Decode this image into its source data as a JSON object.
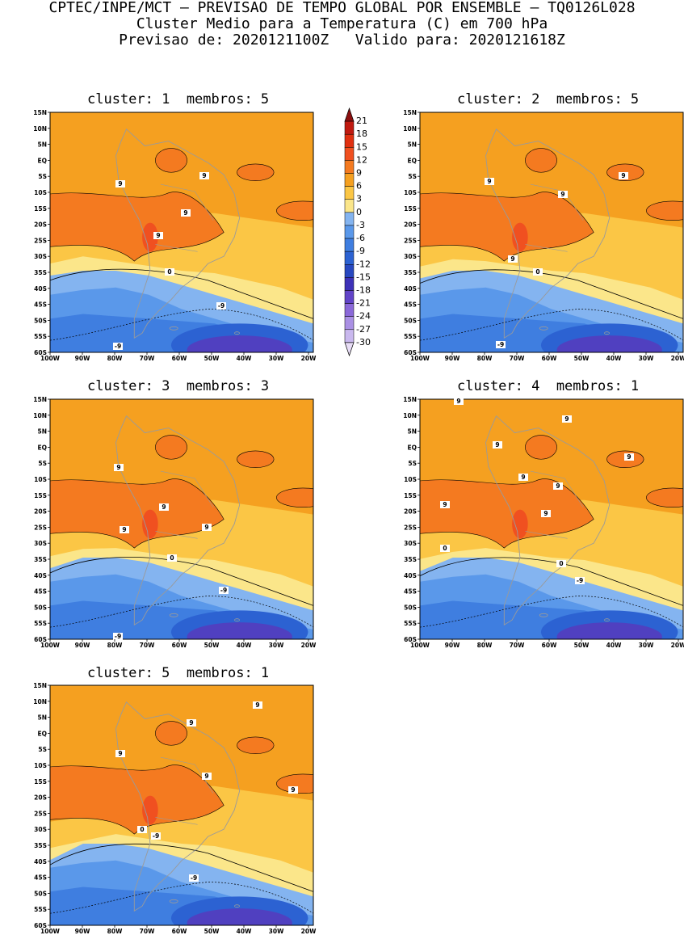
{
  "header": {
    "line1": "CPTEC/INPE/MCT – PREVISAO DE TEMPO GLOBAL POR ENSEMBLE – TQ0126L028",
    "line2": "Cluster Medio para a Temperatura (C) em 700 hPa",
    "line3": "Previsao de: 2020121100Z   Valido para: 2020121618Z"
  },
  "panels": [
    {
      "title": "cluster: 1  membros: 5",
      "labels": [
        "9",
        "9",
        "9",
        "9",
        "0",
        "-9",
        "-9"
      ]
    },
    {
      "title": "cluster: 2  membros: 5",
      "labels": [
        "9",
        "9",
        "9",
        "9",
        "0",
        "-9"
      ]
    },
    {
      "title": "cluster: 3  membros: 3",
      "labels": [
        "9",
        "9",
        "9",
        "9",
        "0",
        "-9",
        "-9"
      ]
    },
    {
      "title": "cluster: 4  membros: 1",
      "labels": [
        "9",
        "9",
        "9",
        "9",
        "9",
        "9",
        "9",
        "9",
        "0",
        "0",
        "-9"
      ]
    },
    {
      "title": "cluster: 5  membros: 1",
      "labels": [
        "9",
        "9",
        "9",
        "9",
        "9",
        "0",
        "-9",
        "-9"
      ]
    }
  ],
  "axes": {
    "lat_labels": [
      "15N",
      "10N",
      "5N",
      "EQ",
      "5S",
      "10S",
      "15S",
      "20S",
      "25S",
      "30S",
      "35S",
      "40S",
      "45S",
      "50S",
      "55S",
      "60S"
    ],
    "lon_labels": [
      "100W",
      "90W",
      "80W",
      "70W",
      "60W",
      "50W",
      "40W",
      "30W",
      "20W"
    ]
  },
  "colorbar": {
    "labels": [
      "21",
      "18",
      "15",
      "12",
      "9",
      "6",
      "3",
      "0",
      "-3",
      "-6",
      "-9",
      "-12",
      "-15",
      "-18",
      "-21",
      "-24",
      "-27",
      "-30"
    ],
    "colors": [
      "#8c1010",
      "#c01a10",
      "#e03010",
      "#f05020",
      "#f47a20",
      "#f5a020",
      "#fbc645",
      "#fbe68a",
      "#84b4f0",
      "#5a98ea",
      "#3f7ee0",
      "#2c62d2",
      "#2848c0",
      "#3e32b8",
      "#6244c8",
      "#8a68d8",
      "#aa90e4",
      "#c9b8ee",
      "#e8ddf6"
    ]
  },
  "colors": {
    "warm_base": "#f5a020",
    "warm_mid": "#f47a20",
    "warm_hot": "#f05020",
    "pale_yellow": "#fbe68a",
    "yellow": "#fbc645",
    "cold_light": "#84b4f0",
    "cold_mid": "#5a98ea",
    "cold_dark": "#3f7ee0",
    "cold_deeper": "#2c62d2",
    "cold_purple": "#5040c0",
    "coast": "#9a9a9a"
  }
}
